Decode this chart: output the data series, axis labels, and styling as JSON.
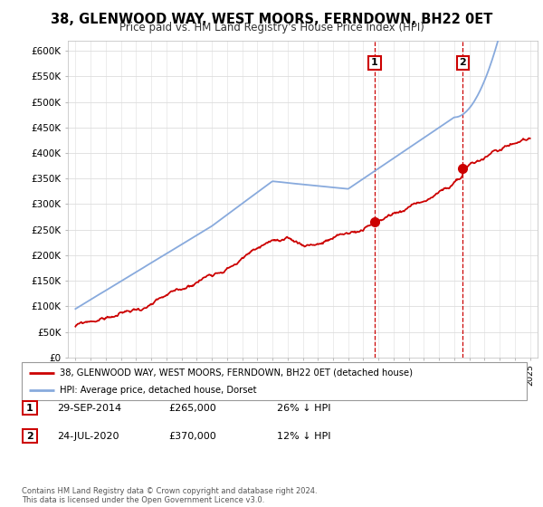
{
  "title": "38, GLENWOOD WAY, WEST MOORS, FERNDOWN, BH22 0ET",
  "subtitle": "Price paid vs. HM Land Registry's House Price Index (HPI)",
  "ylim": [
    0,
    620000
  ],
  "yticks": [
    0,
    50000,
    100000,
    150000,
    200000,
    250000,
    300000,
    350000,
    400000,
    450000,
    500000,
    550000,
    600000
  ],
  "ytick_labels": [
    "£0",
    "£50K",
    "£100K",
    "£150K",
    "£200K",
    "£250K",
    "£300K",
    "£350K",
    "£400K",
    "£450K",
    "£500K",
    "£550K",
    "£600K"
  ],
  "sale1_date": 2014.75,
  "sale1_price": 265000,
  "sale2_date": 2020.56,
  "sale2_price": 370000,
  "red_line_color": "#cc0000",
  "blue_line_color": "#88aadd",
  "vline_color": "#cc0000",
  "grid_color": "#dddddd",
  "legend_label_red": "38, GLENWOOD WAY, WEST MOORS, FERNDOWN, BH22 0ET (detached house)",
  "legend_label_blue": "HPI: Average price, detached house, Dorset",
  "table_row1": [
    "1",
    "29-SEP-2014",
    "£265,000",
    "26% ↓ HPI"
  ],
  "table_row2": [
    "2",
    "24-JUL-2020",
    "£370,000",
    "12% ↓ HPI"
  ],
  "footnote": "Contains HM Land Registry data © Crown copyright and database right 2024.\nThis data is licensed under the Open Government Licence v3.0."
}
